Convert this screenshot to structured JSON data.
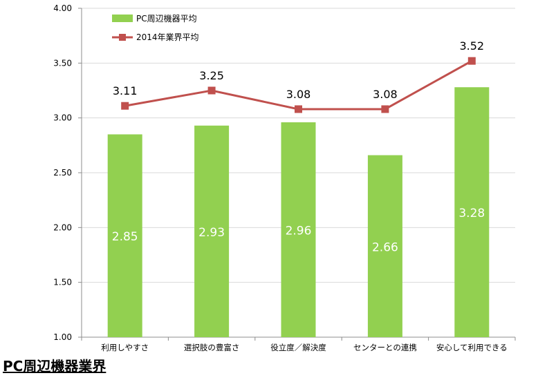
{
  "chart_data": {
    "type": "bar",
    "categories": [
      "利用しやすさ",
      "選択肢の豊富さ",
      "役立度／解決度",
      "センターとの連携",
      "安心して利用できる"
    ],
    "series": [
      {
        "name": "PC周辺機器平均",
        "type": "bar",
        "color": "#92d050",
        "values": [
          2.85,
          2.93,
          2.96,
          2.66,
          3.28
        ],
        "labels": [
          "2.85",
          "2.93",
          "2.96",
          "2.66",
          "3.28"
        ]
      },
      {
        "name": "2014年業界平均",
        "type": "line",
        "color": "#c0504d",
        "values": [
          3.11,
          3.25,
          3.08,
          3.08,
          3.52
        ],
        "labels": [
          "3.11",
          "3.25",
          "3.08",
          "3.08",
          "3.52"
        ]
      }
    ],
    "ylim": [
      1.0,
      4.0
    ],
    "yticks": [
      "1.00",
      "1.50",
      "2.00",
      "2.50",
      "3.00",
      "3.50",
      "4.00"
    ],
    "grid": true,
    "legend_position": "top-left"
  },
  "footer": {
    "title": "PC周辺機器業界"
  }
}
